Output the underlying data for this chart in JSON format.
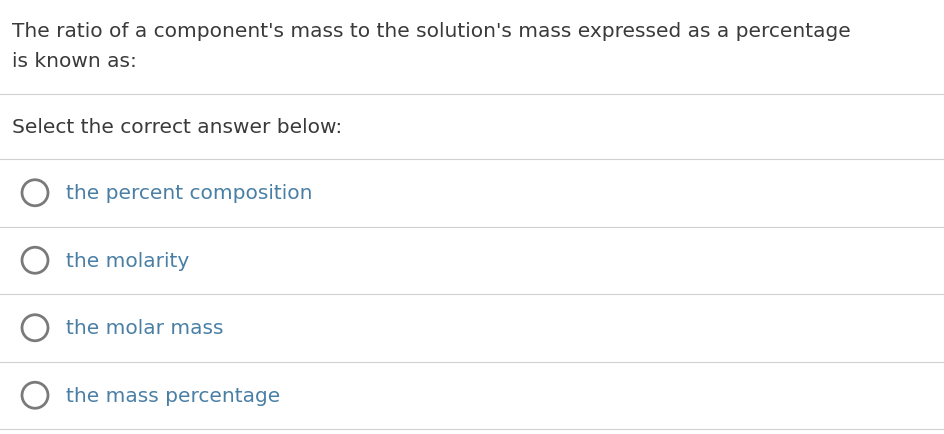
{
  "background_color": "#ffffff",
  "question_text_line1": "The ratio of a component's mass to the solution's mass expressed as a percentage",
  "question_text_line2": "is known as:",
  "subtitle": "Select the correct answer below:",
  "options": [
    "the percent composition",
    "the molarity",
    "the molar mass",
    "the mass percentage"
  ],
  "text_color": "#3a3a3a",
  "option_text_color": "#4a7fa5",
  "circle_edge_color": "#7a7a7a",
  "line_color": "#d0d0d0",
  "font_size_question": 14.5,
  "font_size_subtitle": 14.5,
  "font_size_options": 14.5,
  "fig_width": 9.45,
  "fig_height": 4.35,
  "dpi": 100
}
